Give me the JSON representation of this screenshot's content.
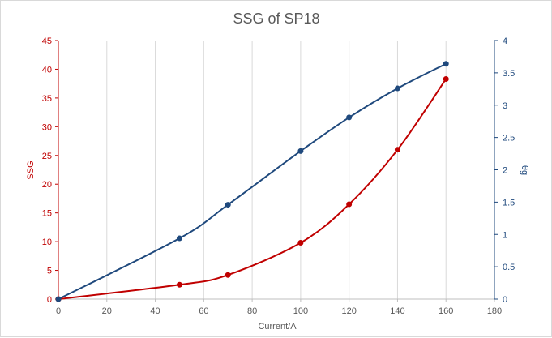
{
  "chart_data": {
    "type": "line",
    "title": "SSG of SP18",
    "xlabel": "Current/A",
    "ylabel": "SSG",
    "y2label": "θg",
    "xlim": [
      0,
      180
    ],
    "ylim": [
      0,
      45
    ],
    "y2lim": [
      0,
      4
    ],
    "xticks": [
      0,
      20,
      40,
      60,
      80,
      100,
      120,
      140,
      160,
      180
    ],
    "yticks": [
      0,
      5,
      10,
      15,
      20,
      25,
      30,
      35,
      40,
      45
    ],
    "y2ticks": [
      0,
      0.5,
      1,
      1.5,
      2,
      2.5,
      3,
      3.5,
      4
    ],
    "grid": "vertical",
    "legend": "none",
    "series": [
      {
        "axis": "left",
        "color": "#c00000",
        "x": [
          0,
          50,
          70,
          100,
          120,
          140,
          160
        ],
        "values": [
          0,
          2.5,
          4.2,
          9.8,
          16.5,
          26,
          38.3
        ]
      },
      {
        "axis": "right",
        "color": "#1f497d",
        "x": [
          0,
          50,
          70,
          100,
          120,
          140,
          160
        ],
        "values": [
          0,
          0.94,
          1.46,
          2.29,
          2.81,
          3.26,
          3.64
        ]
      }
    ]
  }
}
